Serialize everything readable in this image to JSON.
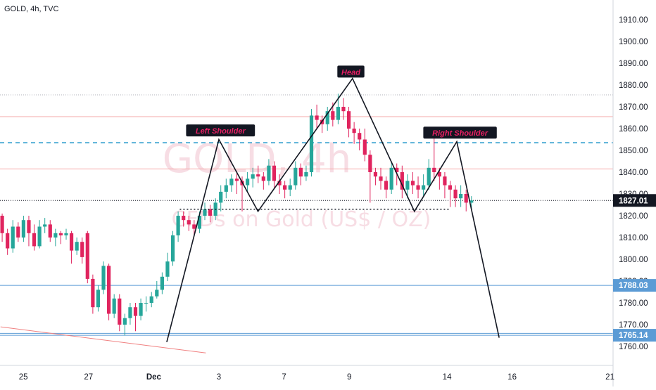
{
  "header": {
    "symbol_line": "GOLD, 4h, TVC"
  },
  "watermark": {
    "ticker": "GOLD, 4h",
    "description": "CFDs on Gold (US$ / OZ)"
  },
  "colors": {
    "up": "#26a69a",
    "down": "#e0245e",
    "blue_line": "#5b9bd5",
    "red_level": "#f5a9a9",
    "dashed_level": "#2196c9",
    "trend": "#f08080",
    "pattern": "#131722",
    "label_bg": "#131722",
    "label_text": "#e91e63",
    "axis_text": "#131722"
  },
  "price_axis": {
    "ticks": [
      "1910.00",
      "1900.00",
      "1890.00",
      "1880.00",
      "1870.00",
      "1860.00",
      "1850.00",
      "1840.00",
      "1830.00",
      "1820.00",
      "1810.00",
      "1800.00",
      "1790.00",
      "1780.00",
      "1770.00",
      "1760.00"
    ],
    "current_price": "1827.01",
    "level_tags": [
      {
        "text": "1788.03",
        "price": 1788.03
      },
      {
        "text": "1765.14",
        "price": 1765.14
      }
    ]
  },
  "time_axis": {
    "ticks": [
      {
        "label": "25",
        "t": -1.4
      },
      {
        "label": "27",
        "t": 0.6
      },
      {
        "label": "Dec",
        "t": 2.6
      },
      {
        "label": "3",
        "t": 4.6
      },
      {
        "label": "7",
        "t": 6.6
      },
      {
        "label": "9",
        "t": 8.6
      },
      {
        "label": "14",
        "t": 11.6
      },
      {
        "label": "16",
        "t": 13.6
      },
      {
        "label": "21",
        "t": 16.6
      }
    ]
  },
  "pattern_labels": [
    {
      "text": "Left Shoulder",
      "t": 4.65,
      "price": 1859
    },
    {
      "text": "Head",
      "t": 8.65,
      "price": 1886
    },
    {
      "text": "Right Shoulder",
      "t": 12.0,
      "price": 1858
    }
  ],
  "chart_data": {
    "type": "candlestick",
    "title": "GOLD, 4h, TVC",
    "y_range": [
      1756,
      1916
    ],
    "x_units": "trading days from Nov 27 (Dec 1 = 2.0)",
    "levels": {
      "dotted_black": [
        1875.5,
        1827.01
      ],
      "red_solid": [
        1865.5,
        1841.5
      ],
      "blue_dashed": 1853.5,
      "blue_solid": [
        1788.03,
        1765.14,
        1766
      ]
    },
    "trend_line": [
      [
        -2.1,
        1769
      ],
      [
        4.2,
        1757
      ]
    ],
    "neckline": [
      [
        3.4,
        1823
      ],
      [
        11.7,
        1823
      ]
    ],
    "head_and_shoulders": [
      [
        3.0,
        1762
      ],
      [
        4.6,
        1855
      ],
      [
        5.8,
        1822
      ],
      [
        8.7,
        1883
      ],
      [
        10.6,
        1822
      ],
      [
        11.9,
        1854
      ],
      [
        13.2,
        1764
      ]
    ],
    "candles": [
      [
        1820,
        1812,
        1821,
        1808
      ],
      [
        1812,
        1805,
        1814,
        1802
      ],
      [
        1805,
        1815,
        1818,
        1803
      ],
      [
        1815,
        1810,
        1817,
        1808
      ],
      [
        1810,
        1818,
        1820,
        1808
      ],
      [
        1818,
        1812,
        1820,
        1806
      ],
      [
        1812,
        1806,
        1816,
        1804
      ],
      [
        1806,
        1815,
        1818,
        1805
      ],
      [
        1815,
        1816,
        1819,
        1812
      ],
      [
        1816,
        1810,
        1818,
        1808
      ],
      [
        1810,
        1812,
        1814,
        1806
      ],
      [
        1812,
        1811,
        1813,
        1807
      ],
      [
        1811,
        1812,
        1814,
        1809
      ],
      [
        1812,
        1804,
        1813,
        1798
      ],
      [
        1804,
        1808,
        1810,
        1802
      ],
      [
        1808,
        1801,
        1810,
        1798
      ],
      [
        1812,
        1791,
        1813,
        1789
      ],
      [
        1791,
        1778,
        1793,
        1775
      ],
      [
        1778,
        1786,
        1788,
        1776
      ],
      [
        1786,
        1797,
        1799,
        1784
      ],
      [
        1797,
        1775,
        1798,
        1772
      ],
      [
        1775,
        1782,
        1784,
        1773
      ],
      [
        1782,
        1770,
        1784,
        1767
      ],
      [
        1770,
        1773,
        1775,
        1765
      ],
      [
        1773,
        1778,
        1780,
        1770
      ],
      [
        1778,
        1774,
        1780,
        1767
      ],
      [
        1774,
        1780,
        1782,
        1772
      ],
      [
        1780,
        1780,
        1783,
        1776
      ],
      [
        1780,
        1783,
        1785,
        1778
      ],
      [
        1783,
        1786,
        1790,
        1782
      ],
      [
        1786,
        1792,
        1794,
        1784
      ],
      [
        1792,
        1799,
        1803,
        1790
      ],
      [
        1799,
        1811,
        1813,
        1797
      ],
      [
        1811,
        1820,
        1822,
        1808
      ],
      [
        1820,
        1818,
        1822,
        1815
      ],
      [
        1818,
        1816,
        1820,
        1813
      ],
      [
        1816,
        1814,
        1818,
        1811
      ],
      [
        1814,
        1820,
        1822,
        1812
      ],
      [
        1820,
        1823,
        1826,
        1818
      ],
      [
        1823,
        1820,
        1825,
        1817
      ],
      [
        1820,
        1826,
        1828,
        1818
      ],
      [
        1826,
        1831,
        1834,
        1822
      ],
      [
        1831,
        1834,
        1837,
        1828
      ],
      [
        1834,
        1837,
        1839,
        1831
      ],
      [
        1837,
        1836,
        1840,
        1830
      ],
      [
        1836,
        1834,
        1838,
        1822
      ],
      [
        1834,
        1837,
        1840,
        1831
      ],
      [
        1837,
        1839,
        1842,
        1833
      ],
      [
        1839,
        1838,
        1843,
        1835
      ],
      [
        1838,
        1836,
        1840,
        1832
      ],
      [
        1836,
        1843,
        1846,
        1834
      ],
      [
        1843,
        1836,
        1845,
        1833
      ],
      [
        1836,
        1834,
        1839,
        1830
      ],
      [
        1834,
        1832,
        1836,
        1828
      ],
      [
        1832,
        1834,
        1837,
        1829
      ],
      [
        1834,
        1842,
        1845,
        1832
      ],
      [
        1842,
        1838,
        1844,
        1834
      ],
      [
        1838,
        1840,
        1843,
        1836
      ],
      [
        1840,
        1866,
        1869,
        1838
      ],
      [
        1866,
        1864,
        1871,
        1860
      ],
      [
        1864,
        1862,
        1866,
        1858
      ],
      [
        1862,
        1868,
        1870,
        1859
      ],
      [
        1868,
        1864,
        1872,
        1861
      ],
      [
        1864,
        1870,
        1876,
        1862
      ],
      [
        1870,
        1868,
        1874,
        1864
      ],
      [
        1868,
        1860,
        1870,
        1856
      ],
      [
        1860,
        1858,
        1863,
        1853
      ],
      [
        1858,
        1855,
        1860,
        1850
      ],
      [
        1855,
        1848,
        1860,
        1845
      ],
      [
        1848,
        1840,
        1850,
        1826
      ],
      [
        1840,
        1838,
        1842,
        1834
      ],
      [
        1838,
        1836,
        1842,
        1832
      ],
      [
        1836,
        1832,
        1838,
        1828
      ],
      [
        1832,
        1842,
        1845,
        1830
      ],
      [
        1842,
        1840,
        1844,
        1834
      ],
      [
        1840,
        1832,
        1843,
        1828
      ],
      [
        1832,
        1836,
        1839,
        1828
      ],
      [
        1836,
        1834,
        1840,
        1830
      ],
      [
        1834,
        1832,
        1838,
        1828
      ],
      [
        1832,
        1834,
        1839,
        1829
      ],
      [
        1834,
        1842,
        1846,
        1832
      ],
      [
        1842,
        1840,
        1856,
        1836
      ],
      [
        1840,
        1838,
        1842,
        1832
      ],
      [
        1838,
        1834,
        1840,
        1828
      ],
      [
        1834,
        1832,
        1836,
        1824
      ],
      [
        1832,
        1828,
        1834,
        1824
      ],
      [
        1828,
        1830,
        1834,
        1824
      ],
      [
        1830,
        1826,
        1832,
        1822
      ],
      [
        1826,
        1827,
        1829,
        1823
      ]
    ]
  }
}
